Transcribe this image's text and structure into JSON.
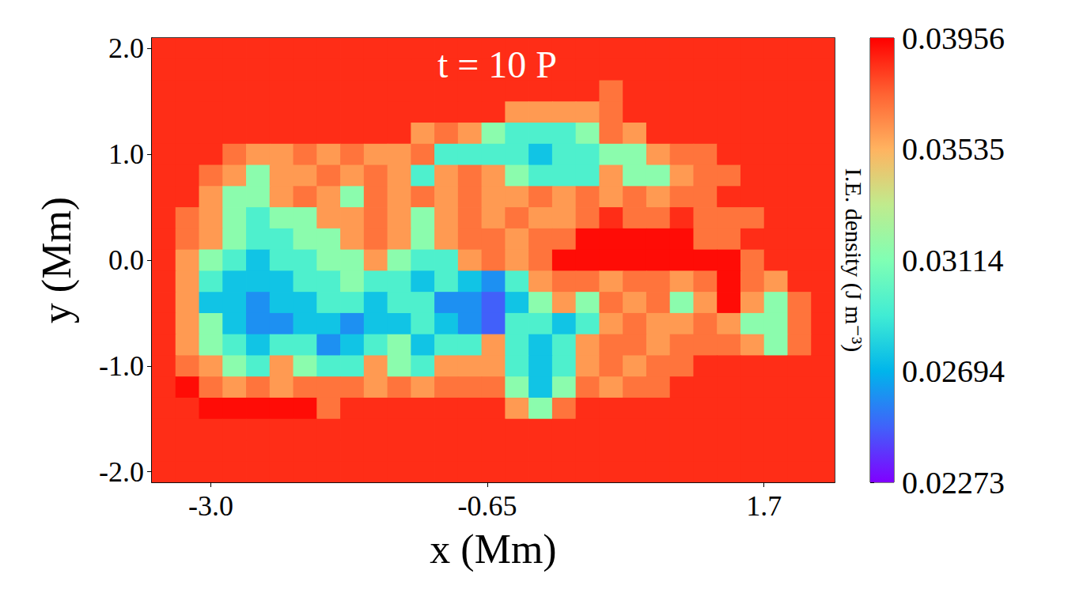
{
  "chart_data": {
    "type": "heatmap",
    "title": "t = 10 P",
    "xlabel": "x (Mm)",
    "ylabel": "y (Mm)",
    "xlim": [
      -3.5,
      2.3
    ],
    "ylim": [
      -2.1,
      2.1
    ],
    "xticks": [
      {
        "value": -3.0,
        "label": "-3.0"
      },
      -0.65,
      1.7
    ],
    "yticks": [
      {
        "value": -2.0,
        "label": "-2.0"
      },
      {
        "value": -1.0,
        "label": "-1.0"
      },
      {
        "value": 0.0,
        "label": "0.0"
      },
      {
        "value": 1.0,
        "label": "1.0"
      },
      {
        "value": 2.0,
        "label": "2.0"
      }
    ],
    "grid": false,
    "colorbar": {
      "label": "I.E. density (J m⁻³)",
      "range": [
        0.02273,
        0.03956
      ],
      "ticks": [
        0.02273,
        0.02694,
        0.03114,
        0.03535,
        0.03956
      ]
    },
    "cells": {
      "x": [
        -3.4,
        -3.2,
        -3.0,
        -2.8,
        -2.6,
        -2.4,
        -2.2,
        -2.0,
        -1.8,
        -1.6,
        -1.4,
        -1.2,
        -1.0,
        -0.8,
        -0.6,
        -0.4,
        -0.2,
        0.0,
        0.2,
        0.4,
        0.6,
        0.8,
        1.0,
        1.2,
        1.4,
        1.6,
        1.8,
        2.0,
        2.2
      ],
      "y": [
        2.0,
        1.8,
        1.6,
        1.4,
        1.2,
        1.0,
        0.8,
        0.6,
        0.4,
        0.2,
        0.0,
        -0.2,
        -0.4,
        -0.6,
        -0.8,
        -1.0,
        -1.2,
        -1.4,
        -1.6,
        -1.8,
        -2.0
      ],
      "values": [
        [
          0.0386,
          0.0386,
          0.0386,
          0.0386,
          0.0386,
          0.0386,
          0.0386,
          0.0386,
          0.0386,
          0.0386,
          0.0386,
          0.0386,
          0.0386,
          0.0386,
          0.0386,
          0.0386,
          0.0386,
          0.0386,
          0.0386,
          0.0386,
          0.0386,
          0.0386,
          0.0386,
          0.0386,
          0.0386,
          0.0386,
          0.0386,
          0.0386,
          0.0386
        ],
        [
          0.0386,
          0.0386,
          0.0386,
          0.0386,
          0.0386,
          0.0386,
          0.0386,
          0.0386,
          0.0386,
          0.0386,
          0.0386,
          0.0386,
          0.0386,
          0.0386,
          0.0386,
          0.0386,
          0.0386,
          0.0386,
          0.0386,
          0.0386,
          0.0386,
          0.0386,
          0.0386,
          0.0386,
          0.0386,
          0.0386,
          0.0386,
          0.0386,
          0.0386
        ],
        [
          0.0386,
          0.0386,
          0.0386,
          0.0386,
          0.0386,
          0.0386,
          0.0386,
          0.0386,
          0.0386,
          0.0386,
          0.0386,
          0.0386,
          0.0386,
          0.0386,
          0.0386,
          0.0386,
          0.0386,
          0.0386,
          0.0386,
          0.037,
          0.0386,
          0.0386,
          0.0386,
          0.0386,
          0.0386,
          0.0386,
          0.0386,
          0.0386,
          0.0386
        ],
        [
          0.0386,
          0.0386,
          0.0386,
          0.0386,
          0.0386,
          0.0386,
          0.0386,
          0.0386,
          0.0386,
          0.0386,
          0.0386,
          0.0386,
          0.0386,
          0.0386,
          0.0386,
          0.036,
          0.036,
          0.036,
          0.036,
          0.037,
          0.0386,
          0.0386,
          0.0386,
          0.0386,
          0.0386,
          0.0386,
          0.0386,
          0.0386,
          0.0386
        ],
        [
          0.0386,
          0.0386,
          0.0386,
          0.0386,
          0.0386,
          0.0386,
          0.0386,
          0.0386,
          0.0386,
          0.0386,
          0.0386,
          0.036,
          0.037,
          0.036,
          0.0315,
          0.0295,
          0.0295,
          0.0295,
          0.0315,
          0.037,
          0.036,
          0.0386,
          0.0386,
          0.0386,
          0.0386,
          0.0386,
          0.0386,
          0.0386,
          0.0386
        ],
        [
          0.0386,
          0.0386,
          0.0386,
          0.037,
          0.036,
          0.036,
          0.037,
          0.036,
          0.037,
          0.036,
          0.036,
          0.037,
          0.0295,
          0.0295,
          0.0295,
          0.0295,
          0.0275,
          0.0295,
          0.0295,
          0.0315,
          0.0315,
          0.036,
          0.037,
          0.037,
          0.0386,
          0.0386,
          0.0386,
          0.0386,
          0.0386
        ],
        [
          0.0386,
          0.0386,
          0.037,
          0.036,
          0.0315,
          0.036,
          0.036,
          0.037,
          0.036,
          0.037,
          0.036,
          0.0295,
          0.036,
          0.037,
          0.036,
          0.0315,
          0.0295,
          0.0295,
          0.0295,
          0.036,
          0.0315,
          0.0315,
          0.036,
          0.037,
          0.037,
          0.0386,
          0.0386,
          0.0386,
          0.0386
        ],
        [
          0.0386,
          0.0386,
          0.036,
          0.0315,
          0.0315,
          0.036,
          0.037,
          0.036,
          0.0315,
          0.037,
          0.036,
          0.037,
          0.036,
          0.037,
          0.036,
          0.036,
          0.037,
          0.036,
          0.037,
          0.036,
          0.037,
          0.036,
          0.037,
          0.037,
          0.0386,
          0.0386,
          0.0386,
          0.0386,
          0.0386
        ],
        [
          0.0386,
          0.037,
          0.036,
          0.0315,
          0.0295,
          0.0315,
          0.0315,
          0.036,
          0.036,
          0.037,
          0.036,
          0.0315,
          0.036,
          0.037,
          0.036,
          0.037,
          0.036,
          0.036,
          0.037,
          0.0386,
          0.037,
          0.037,
          0.0386,
          0.037,
          0.037,
          0.037,
          0.0386,
          0.0386,
          0.0386
        ],
        [
          0.0386,
          0.037,
          0.036,
          0.0315,
          0.0295,
          0.0295,
          0.0315,
          0.0315,
          0.036,
          0.037,
          0.036,
          0.0315,
          0.036,
          0.037,
          0.037,
          0.036,
          0.037,
          0.037,
          0.0393,
          0.0393,
          0.0393,
          0.0393,
          0.0393,
          0.037,
          0.037,
          0.0386,
          0.0386,
          0.0386,
          0.0386
        ],
        [
          0.0386,
          0.036,
          0.0315,
          0.0295,
          0.0275,
          0.0295,
          0.0295,
          0.0315,
          0.0315,
          0.036,
          0.0315,
          0.0295,
          0.0295,
          0.036,
          0.037,
          0.036,
          0.037,
          0.0393,
          0.0393,
          0.0393,
          0.0393,
          0.0393,
          0.0393,
          0.0393,
          0.0393,
          0.037,
          0.0386,
          0.0386,
          0.0386
        ],
        [
          0.0386,
          0.036,
          0.0295,
          0.0275,
          0.0275,
          0.0275,
          0.0295,
          0.0295,
          0.0315,
          0.0295,
          0.0295,
          0.0275,
          0.0295,
          0.0275,
          0.026,
          0.0295,
          0.036,
          0.037,
          0.037,
          0.036,
          0.037,
          0.037,
          0.036,
          0.037,
          0.0393,
          0.037,
          0.036,
          0.0386,
          0.0386
        ],
        [
          0.0386,
          0.036,
          0.0275,
          0.0275,
          0.026,
          0.0275,
          0.0275,
          0.0295,
          0.0295,
          0.0275,
          0.0295,
          0.0295,
          0.026,
          0.026,
          0.0248,
          0.0275,
          0.0315,
          0.036,
          0.0315,
          0.037,
          0.036,
          0.037,
          0.0315,
          0.036,
          0.0393,
          0.036,
          0.0315,
          0.037,
          0.0386
        ],
        [
          0.0386,
          0.036,
          0.0315,
          0.0275,
          0.026,
          0.026,
          0.0275,
          0.0275,
          0.026,
          0.0275,
          0.0275,
          0.0295,
          0.0275,
          0.026,
          0.0248,
          0.0295,
          0.0295,
          0.0275,
          0.0295,
          0.036,
          0.037,
          0.036,
          0.036,
          0.037,
          0.036,
          0.0315,
          0.0315,
          0.037,
          0.0386
        ],
        [
          0.0386,
          0.036,
          0.0315,
          0.0295,
          0.0275,
          0.0295,
          0.0295,
          0.026,
          0.0275,
          0.0295,
          0.0315,
          0.0275,
          0.0295,
          0.0295,
          0.036,
          0.0295,
          0.0275,
          0.0295,
          0.036,
          0.037,
          0.037,
          0.036,
          0.037,
          0.037,
          0.037,
          0.036,
          0.0315,
          0.037,
          0.0386
        ],
        [
          0.0386,
          0.037,
          0.036,
          0.0315,
          0.0295,
          0.036,
          0.0315,
          0.0295,
          0.0295,
          0.036,
          0.0315,
          0.0295,
          0.036,
          0.036,
          0.036,
          0.0295,
          0.0275,
          0.0295,
          0.036,
          0.037,
          0.036,
          0.037,
          0.037,
          0.0386,
          0.0386,
          0.0386,
          0.0386,
          0.0386,
          0.0386
        ],
        [
          0.0386,
          0.0393,
          0.037,
          0.036,
          0.037,
          0.036,
          0.037,
          0.037,
          0.037,
          0.036,
          0.037,
          0.036,
          0.037,
          0.037,
          0.037,
          0.0315,
          0.0275,
          0.0315,
          0.037,
          0.036,
          0.037,
          0.037,
          0.0386,
          0.0386,
          0.0386,
          0.0386,
          0.0386,
          0.0386,
          0.0386
        ],
        [
          0.0386,
          0.0386,
          0.0393,
          0.0393,
          0.0393,
          0.0393,
          0.0393,
          0.037,
          0.0386,
          0.0386,
          0.0386,
          0.0386,
          0.0386,
          0.0386,
          0.0386,
          0.036,
          0.0315,
          0.037,
          0.0386,
          0.0386,
          0.0386,
          0.0386,
          0.0386,
          0.0386,
          0.0386,
          0.0386,
          0.0386,
          0.0386,
          0.0386
        ],
        [
          0.0386,
          0.0386,
          0.0386,
          0.0386,
          0.0386,
          0.0386,
          0.0386,
          0.0386,
          0.0386,
          0.0386,
          0.0386,
          0.0386,
          0.0386,
          0.0386,
          0.0386,
          0.0386,
          0.0386,
          0.0386,
          0.0386,
          0.0386,
          0.0386,
          0.0386,
          0.0386,
          0.0386,
          0.0386,
          0.0386,
          0.0386,
          0.0386,
          0.0386
        ],
        [
          0.0386,
          0.0386,
          0.0386,
          0.0386,
          0.0386,
          0.0386,
          0.0386,
          0.0386,
          0.0386,
          0.0386,
          0.0386,
          0.0386,
          0.0386,
          0.0386,
          0.0386,
          0.0386,
          0.0386,
          0.0386,
          0.0386,
          0.0386,
          0.0386,
          0.0386,
          0.0386,
          0.0386,
          0.0386,
          0.0386,
          0.0386,
          0.0386,
          0.0386
        ],
        [
          0.0386,
          0.0386,
          0.0386,
          0.0386,
          0.0386,
          0.0386,
          0.0386,
          0.0386,
          0.0386,
          0.0386,
          0.0386,
          0.0386,
          0.0386,
          0.0386,
          0.0386,
          0.0386,
          0.0386,
          0.0386,
          0.0386,
          0.0386,
          0.0386,
          0.0386,
          0.0386,
          0.0386,
          0.0386,
          0.0386,
          0.0386,
          0.0386,
          0.0386
        ]
      ]
    }
  }
}
